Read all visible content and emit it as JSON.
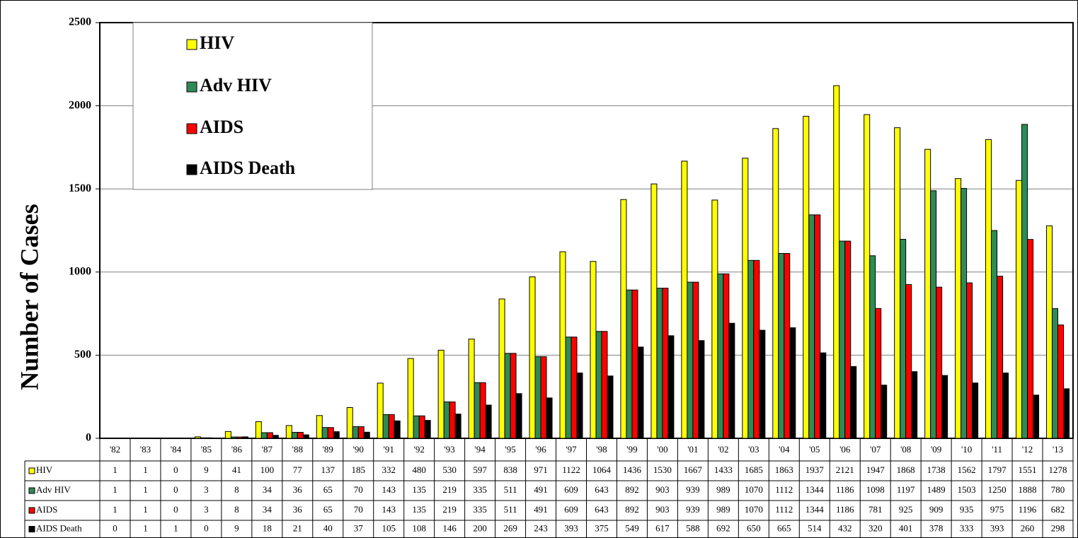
{
  "chart_data": {
    "type": "bar",
    "y_label": "Number of Cases",
    "categories": [
      "'82",
      "'83",
      "'84",
      "'85",
      "'86",
      "'87",
      "'88",
      "'89",
      "'90",
      "'91",
      "'92",
      "'93",
      "'94",
      "'95",
      "'96",
      "'97",
      "'98",
      "'99",
      "'00",
      "'01",
      "'02",
      "'03",
      "'04",
      "'05",
      "'06",
      "'07",
      "'08",
      "'09",
      "'10",
      "'11",
      "'12",
      "'13"
    ],
    "series": [
      {
        "name": "HIV",
        "color": "#ffff00",
        "values": [
          1,
          1,
          0,
          9,
          41,
          100,
          77,
          137,
          185,
          332,
          480,
          530,
          597,
          838,
          971,
          1122,
          1064,
          1436,
          1530,
          1667,
          1433,
          1685,
          1863,
          1937,
          2121,
          1947,
          1868,
          1738,
          1562,
          1797,
          1551,
          1278
        ]
      },
      {
        "name": "Adv HIV",
        "color": "#2e8b57",
        "values": [
          1,
          1,
          0,
          3,
          8,
          34,
          36,
          65,
          70,
          143,
          135,
          219,
          335,
          511,
          491,
          609,
          643,
          892,
          903,
          939,
          989,
          1070,
          1112,
          1344,
          1186,
          1098,
          1197,
          1489,
          1503,
          1250,
          1888,
          780
        ]
      },
      {
        "name": "AIDS",
        "color": "#ff0000",
        "values": [
          1,
          1,
          0,
          3,
          8,
          34,
          36,
          65,
          70,
          143,
          135,
          219,
          335,
          511,
          491,
          609,
          643,
          892,
          903,
          939,
          989,
          1070,
          1112,
          1344,
          1186,
          781,
          925,
          909,
          935,
          975,
          1196,
          682
        ]
      },
      {
        "name": "AIDS Death",
        "color": "#000000",
        "values": [
          0,
          1,
          1,
          0,
          9,
          18,
          21,
          40,
          37,
          105,
          108,
          146,
          200,
          269,
          243,
          393,
          375,
          549,
          617,
          588,
          692,
          650,
          665,
          514,
          432,
          320,
          401,
          378,
          333,
          393,
          260,
          298
        ]
      }
    ],
    "ylim": [
      0,
      2500
    ],
    "yticks": [
      0,
      500,
      1000,
      1500,
      2000,
      2500
    ],
    "grid": true,
    "legend": "upper left"
  }
}
